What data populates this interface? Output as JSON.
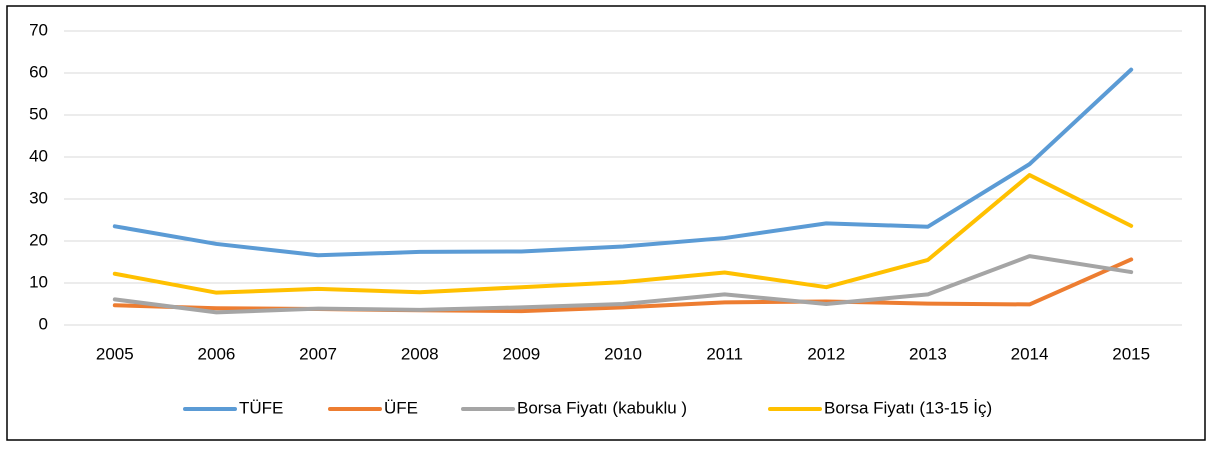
{
  "chart_data": {
    "type": "line",
    "categories": [
      "2005",
      "2006",
      "2007",
      "2008",
      "2009",
      "2010",
      "2011",
      "2012",
      "2013",
      "2014",
      "2015"
    ],
    "series": [
      {
        "name": "TÜFE",
        "color": "#5b9bd5",
        "values": [
          23.5,
          19.3,
          16.6,
          17.4,
          17.5,
          18.7,
          20.7,
          24.2,
          23.4,
          38.3,
          60.8
        ]
      },
      {
        "name": "ÜFE",
        "color": "#ed7d31",
        "values": [
          4.7,
          4.0,
          3.8,
          3.5,
          3.3,
          4.2,
          5.4,
          5.6,
          5.1,
          4.9,
          15.6
        ]
      },
      {
        "name": "Borsa Fiyatı (kabuklu )",
        "color": "#a5a5a5",
        "values": [
          6.1,
          3.0,
          3.9,
          3.6,
          4.2,
          5.0,
          7.3,
          5.0,
          7.3,
          16.4,
          12.6
        ]
      },
      {
        "name": "Borsa Fiyatı (13-15 İç)",
        "color": "#ffc000",
        "values": [
          12.2,
          7.7,
          8.6,
          7.8,
          9.0,
          10.2,
          12.5,
          9.0,
          15.5,
          35.7,
          23.6
        ]
      }
    ],
    "ylim": [
      0,
      70
    ],
    "yticks": [
      0,
      10,
      20,
      30,
      40,
      50,
      60,
      70
    ],
    "grid": true,
    "legend": "bottom"
  }
}
